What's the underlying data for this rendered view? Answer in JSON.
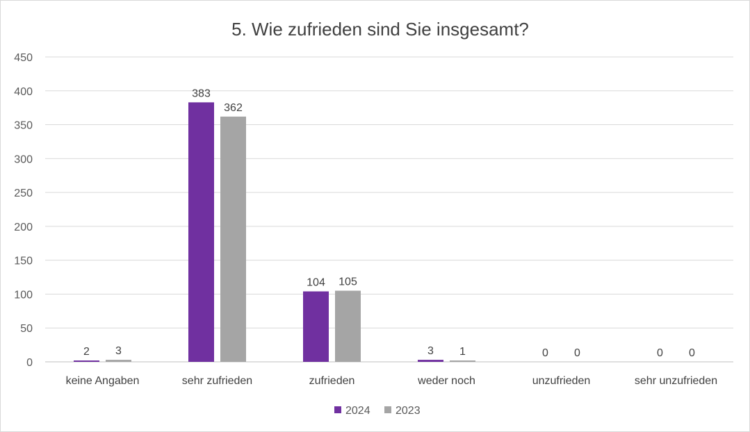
{
  "chart_data": {
    "type": "bar",
    "title": "5. Wie zufrieden sind Sie insgesamt?",
    "categories": [
      "keine Angaben",
      "sehr zufrieden",
      "zufrieden",
      "weder  noch",
      "unzufrieden",
      "sehr unzufrieden"
    ],
    "series": [
      {
        "name": "2024",
        "values": [
          2,
          383,
          104,
          3,
          0,
          0
        ],
        "color": "#7030a0"
      },
      {
        "name": "2023",
        "values": [
          3,
          362,
          105,
          1,
          0,
          0
        ],
        "color": "#a5a5a5"
      }
    ],
    "ylim": [
      0,
      450
    ],
    "yticks": [
      0,
      50,
      100,
      150,
      200,
      250,
      300,
      350,
      400,
      450
    ],
    "xlabel": "",
    "ylabel": "",
    "grid": true,
    "legend": "bottom-center",
    "data_labels": true
  }
}
